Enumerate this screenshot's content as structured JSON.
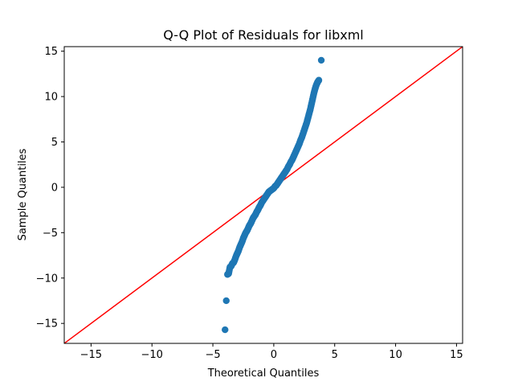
{
  "chart_data": {
    "type": "scatter",
    "title": "Q-Q Plot of Residuals for libxml",
    "xlabel": "Theoretical Quantiles",
    "ylabel": "Sample Quantiles",
    "xlim": [
      -17.2,
      15.5
    ],
    "ylim": [
      -17.2,
      15.5
    ],
    "x_ticks": [
      -15,
      -10,
      -5,
      0,
      5,
      10,
      15
    ],
    "y_ticks": [
      -15,
      -10,
      -5,
      0,
      5,
      10,
      15
    ],
    "x_tick_labels": [
      "−15",
      "−10",
      "−5",
      "0",
      "5",
      "10",
      "15"
    ],
    "y_tick_labels": [
      "−15",
      "−10",
      "−5",
      "0",
      "5",
      "10",
      "15"
    ],
    "grid": false,
    "reference_line": {
      "type": "45-degree",
      "color": "#ff0000"
    },
    "marker_color": "#1f77b4",
    "series": [
      {
        "values": [
          [
            -4.0,
            -15.7
          ],
          [
            -3.9,
            -12.5
          ],
          [
            -3.8,
            -9.6
          ],
          [
            -3.7,
            -9.5
          ],
          [
            -3.6,
            -8.8
          ],
          [
            -3.5,
            -8.7
          ],
          [
            -3.4,
            -8.4
          ],
          [
            -3.3,
            -8.3
          ],
          [
            -3.2,
            -8.0
          ],
          [
            -3.1,
            -7.6
          ],
          [
            -3.0,
            -7.3
          ],
          [
            -2.9,
            -7.0
          ],
          [
            -2.8,
            -6.6
          ],
          [
            -2.7,
            -6.3
          ],
          [
            -2.6,
            -6.0
          ],
          [
            -2.5,
            -5.6
          ],
          [
            -2.4,
            -5.3
          ],
          [
            -2.3,
            -5.0
          ],
          [
            -2.2,
            -4.8
          ],
          [
            -2.1,
            -4.5
          ],
          [
            -2.0,
            -4.2
          ],
          [
            -1.9,
            -4.0
          ],
          [
            -1.8,
            -3.7
          ],
          [
            -1.7,
            -3.4
          ],
          [
            -1.6,
            -3.2
          ],
          [
            -1.5,
            -3.0
          ],
          [
            -1.4,
            -2.7
          ],
          [
            -1.3,
            -2.5
          ],
          [
            -1.2,
            -2.2
          ],
          [
            -1.1,
            -2.0
          ],
          [
            -1.0,
            -1.7
          ],
          [
            -0.9,
            -1.5
          ],
          [
            -0.8,
            -1.3
          ],
          [
            -0.7,
            -1.1
          ],
          [
            -0.6,
            -0.9
          ],
          [
            -0.5,
            -0.7
          ],
          [
            -0.4,
            -0.5
          ],
          [
            -0.3,
            -0.4
          ],
          [
            -0.2,
            -0.3
          ],
          [
            -0.1,
            -0.2
          ],
          [
            0.0,
            -0.1
          ],
          [
            0.1,
            0.1
          ],
          [
            0.2,
            0.2
          ],
          [
            0.3,
            0.4
          ],
          [
            0.4,
            0.6
          ],
          [
            0.5,
            0.8
          ],
          [
            0.6,
            1.0
          ],
          [
            0.7,
            1.2
          ],
          [
            0.8,
            1.4
          ],
          [
            0.9,
            1.6
          ],
          [
            1.0,
            1.8
          ],
          [
            1.1,
            2.0
          ],
          [
            1.2,
            2.3
          ],
          [
            1.3,
            2.5
          ],
          [
            1.4,
            2.8
          ],
          [
            1.5,
            3.0
          ],
          [
            1.6,
            3.3
          ],
          [
            1.7,
            3.6
          ],
          [
            1.8,
            3.9
          ],
          [
            1.9,
            4.2
          ],
          [
            2.0,
            4.5
          ],
          [
            2.1,
            4.8
          ],
          [
            2.2,
            5.2
          ],
          [
            2.3,
            5.5
          ],
          [
            2.4,
            5.9
          ],
          [
            2.5,
            6.3
          ],
          [
            2.6,
            6.7
          ],
          [
            2.7,
            7.1
          ],
          [
            2.8,
            7.6
          ],
          [
            2.9,
            8.1
          ],
          [
            3.0,
            8.6
          ],
          [
            3.1,
            9.2
          ],
          [
            3.2,
            9.8
          ],
          [
            3.3,
            10.4
          ],
          [
            3.4,
            10.9
          ],
          [
            3.5,
            11.3
          ],
          [
            3.6,
            11.6
          ],
          [
            3.7,
            11.8
          ],
          [
            3.9,
            14.0
          ]
        ]
      }
    ]
  }
}
